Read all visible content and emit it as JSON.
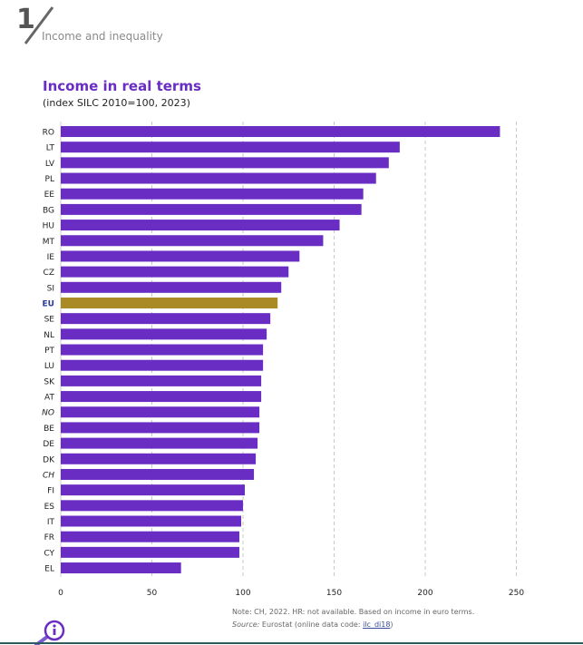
{
  "header": {
    "chapter_number": "1",
    "chapter_title": "Income and inequality"
  },
  "chart_data": {
    "type": "bar",
    "orientation": "horizontal",
    "title": "Income in real terms",
    "subtitle": "(index SILC 2010=100, 2023)",
    "xlabel": "",
    "ylabel": "",
    "xlim": [
      0,
      250
    ],
    "x_ticks": [
      0,
      50,
      100,
      150,
      200,
      250
    ],
    "grid": "vertical dashed",
    "categories": [
      "RO",
      "LT",
      "LV",
      "PL",
      "EE",
      "BG",
      "HU",
      "MT",
      "IE",
      "CZ",
      "SI",
      "EU",
      "SE",
      "NL",
      "PT",
      "LU",
      "SK",
      "AT",
      "NO",
      "BE",
      "DE",
      "DK",
      "CH",
      "FI",
      "ES",
      "IT",
      "FR",
      "CY",
      "EL"
    ],
    "values": [
      241,
      186,
      180,
      173,
      166,
      165,
      153,
      144,
      131,
      125,
      121,
      119,
      115,
      113,
      111,
      111,
      110,
      110,
      109,
      109,
      108,
      107,
      106,
      101,
      100,
      99,
      98,
      98,
      66
    ],
    "highlight": {
      "category": "EU",
      "color": "#a98a24"
    },
    "italic_categories": [
      "NO",
      "CH"
    ],
    "bar_color": "#6a2dc4",
    "label_highlight_color": "#2a3a9a"
  },
  "footer": {
    "note": "Note: CH, 2022. HR: not available. Based on income in euro terms.",
    "source_label": "Source:",
    "source_text": " Eurostat (online data code: ",
    "source_link": "ilc_di18",
    "source_close": ")"
  },
  "icons": {
    "info": "magnifier-info-icon"
  }
}
